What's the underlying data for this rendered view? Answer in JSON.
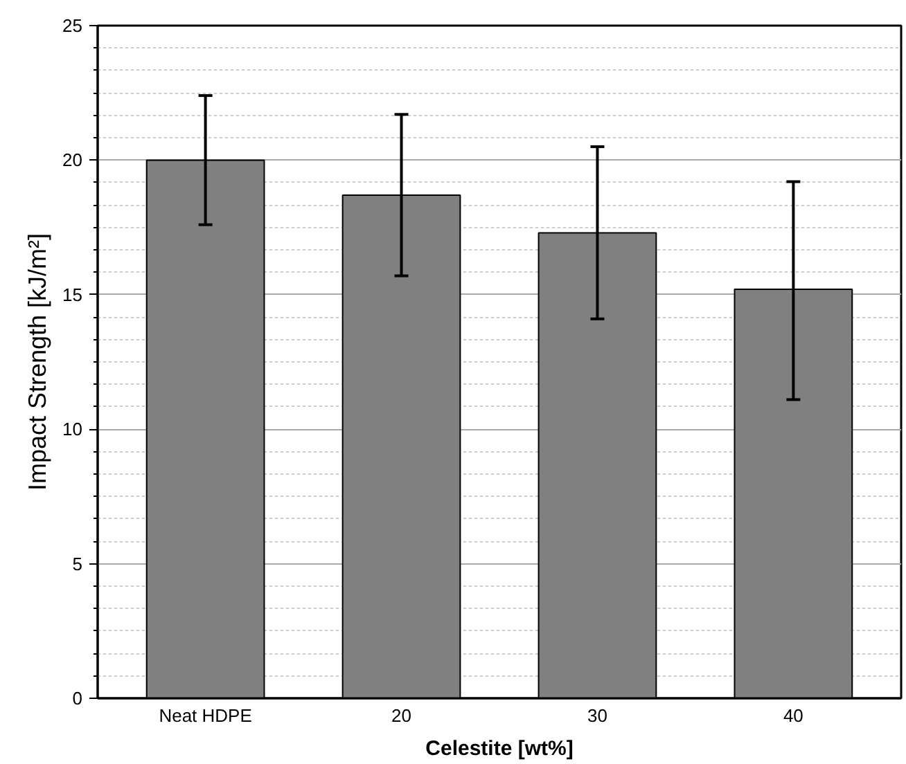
{
  "chart_data": {
    "type": "bar",
    "categories": [
      "Neat HDPE",
      "20",
      "30",
      "40"
    ],
    "values": [
      20.0,
      18.7,
      17.3,
      15.2
    ],
    "color": "#808080",
    "errors": [
      [
        17.6,
        22.4
      ],
      [
        15.7,
        21.7
      ],
      [
        14.1,
        20.5
      ],
      [
        11.1,
        19.2
      ]
    ],
    "xlabel": "Celestite [wt%]",
    "ylabel": "Impact Strength [kJ/m²]",
    "ylim": [
      0,
      25
    ],
    "yticks": [
      0,
      5,
      10,
      15,
      20,
      25
    ],
    "grid": "y"
  }
}
